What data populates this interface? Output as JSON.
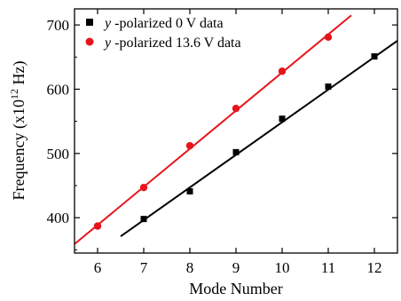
{
  "chart_data": {
    "type": "scatter",
    "xlabel": "Mode Number",
    "ylabel_prefix": "Frequency (x10",
    "ylabel_exp": "12",
    "ylabel_suffix": " Hz)",
    "xlim": [
      5.5,
      12.5
    ],
    "ylim": [
      345,
      725
    ],
    "xticks": [
      6,
      7,
      8,
      9,
      10,
      11,
      12
    ],
    "yticks": [
      400,
      500,
      600,
      700
    ],
    "grid": false,
    "legend_position": "top-left",
    "series": [
      {
        "name_var": "y",
        "name_rest": " -polarized 0 V data",
        "marker": "square",
        "color": "#000000",
        "x": [
          7,
          8,
          9,
          10,
          11,
          12
        ],
        "y": [
          398,
          441,
          502,
          554,
          604,
          651
        ],
        "fit": {
          "x": [
            6.5,
            12.55
          ],
          "y": [
            371,
            678
          ]
        }
      },
      {
        "name_var": "y",
        "name_rest": " -polarized 13.6 V data",
        "marker": "circle",
        "color": "#e8141b",
        "x": [
          6,
          7,
          8,
          9,
          10,
          11
        ],
        "y": [
          387,
          447,
          512,
          570,
          628,
          681
        ],
        "fit": {
          "x": [
            5.5,
            11.5
          ],
          "y": [
            359,
            715
          ]
        }
      }
    ]
  }
}
